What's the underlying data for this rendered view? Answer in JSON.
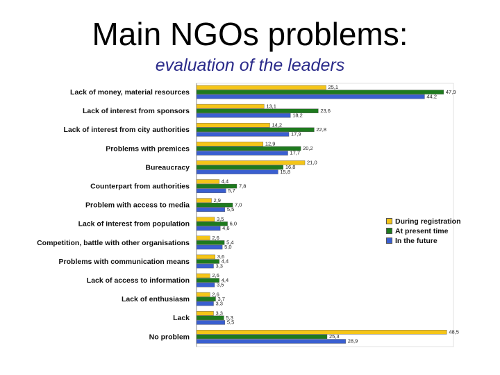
{
  "title": "Main NGOs problems:",
  "subtitle": "evaluation of the leaders",
  "chart_data": {
    "type": "bar",
    "orientation": "horizontal",
    "categories": [
      "Lack of money, material resources",
      "Lack of interest from sponsors",
      "Lack of interest from city authorities",
      "Problems with premices",
      "Bureaucracy",
      "Counterpart from authorities",
      "Problem with access to media",
      "Lack of interest from population",
      "Competition, battle with other organisations",
      "Problems with communication means",
      "Lack of access to information",
      "Lack of enthusiasm",
      "Lack",
      "No problem"
    ],
    "series": [
      {
        "name": "During registration",
        "color": "#f5c518",
        "values": [
          25.1,
          13.1,
          14.2,
          12.9,
          21.0,
          4.4,
          2.9,
          3.5,
          2.6,
          3.6,
          2.6,
          2.6,
          3.3,
          48.5
        ],
        "labels": [
          "25,1",
          "13,1",
          "14,2",
          "12,9",
          "21,0",
          "4,4",
          "2,9",
          "3,5",
          "2,6",
          "3,6",
          "2,6",
          "2,6",
          "3,3",
          "48,5"
        ]
      },
      {
        "name": "At present time",
        "color": "#1e7a1e",
        "values": [
          47.9,
          23.6,
          22.8,
          20.2,
          16.8,
          7.8,
          7.0,
          6.0,
          5.4,
          4.4,
          4.4,
          3.7,
          5.3,
          25.3
        ],
        "labels": [
          "47,9",
          "23,6",
          "22,8",
          "20,2",
          "16,8",
          "7,8",
          "7,0",
          "6,0",
          "5,4",
          "4,4",
          "4,4",
          "3,7",
          "5,3",
          "25,3"
        ]
      },
      {
        "name": "In the future",
        "color": "#3a5fd0",
        "values": [
          44.2,
          18.2,
          17.9,
          17.7,
          15.8,
          5.7,
          5.5,
          4.6,
          5.0,
          3.3,
          3.5,
          3.3,
          5.5,
          28.9
        ],
        "labels": [
          "44,2",
          "18,2",
          "17,9",
          "17,7",
          "15,8",
          "5,7",
          "5,5",
          "4,6",
          "5,0",
          "3,3",
          "3,5",
          "3,3",
          "5,5",
          "28,9"
        ]
      }
    ],
    "xlim": [
      0,
      50
    ],
    "grid": false,
    "legend_position": "right"
  }
}
